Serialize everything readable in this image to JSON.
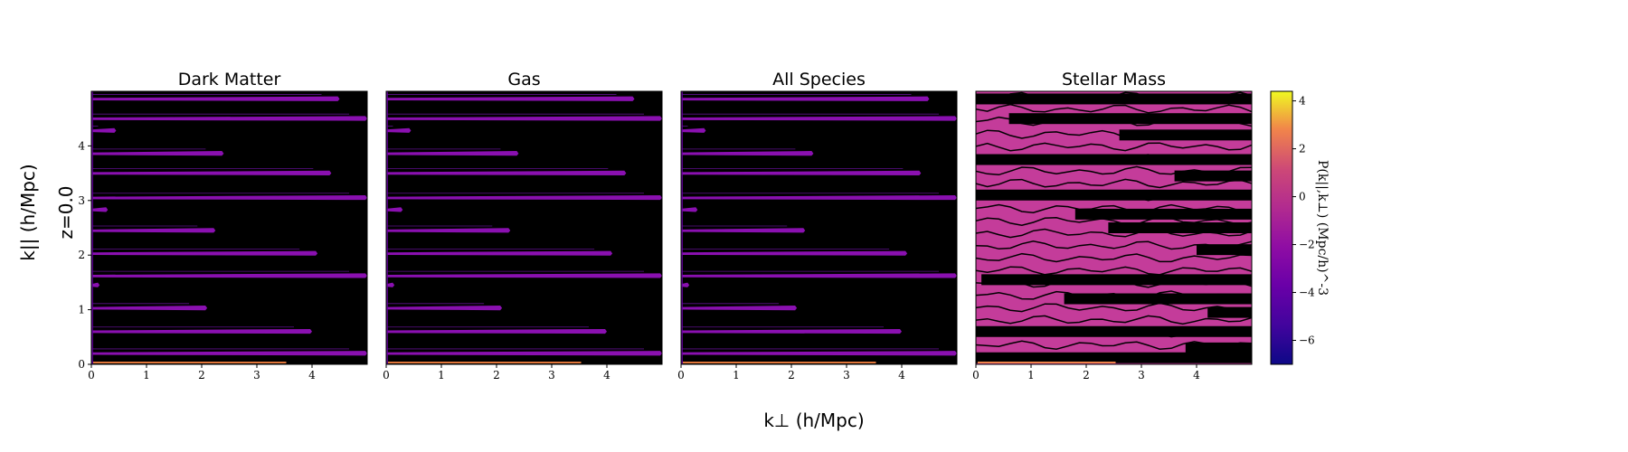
{
  "figure": {
    "xlabel": "k⊥ (h/Mpc)",
    "ylabel": "k|| (h/Mpc)",
    "row_label": "z=0.0"
  },
  "chart_data": {
    "type": "heatmap",
    "colormap": "plasma",
    "xlim": [
      0,
      5
    ],
    "ylim": [
      0,
      5
    ],
    "x_ticks": [
      "0",
      "1",
      "2",
      "3",
      "4"
    ],
    "y_ticks": [
      "0",
      "1",
      "2",
      "3",
      "4"
    ],
    "background_color": "#000000",
    "panels": [
      {
        "title": "Dark Matter",
        "streaks": [
          {
            "y": 4.86,
            "x_end": 4.5
          },
          {
            "y": 4.5,
            "x_end": 5.0
          },
          {
            "y": 4.28,
            "x_end": 0.45
          },
          {
            "y": 3.86,
            "x_end": 2.4
          },
          {
            "y": 3.5,
            "x_end": 4.35
          },
          {
            "y": 3.05,
            "x_end": 5.0
          },
          {
            "y": 2.83,
            "x_end": 0.3
          },
          {
            "y": 2.45,
            "x_end": 2.25
          },
          {
            "y": 2.03,
            "x_end": 4.1
          },
          {
            "y": 1.62,
            "x_end": 5.0
          },
          {
            "y": 1.45,
            "x_end": 0.15
          },
          {
            "y": 1.03,
            "x_end": 2.1
          },
          {
            "y": 0.6,
            "x_end": 4.0
          },
          {
            "y": 0.2,
            "x_end": 5.0
          }
        ]
      },
      {
        "title": "Gas",
        "streaks": [
          {
            "y": 4.86,
            "x_end": 4.5
          },
          {
            "y": 4.5,
            "x_end": 5.0
          },
          {
            "y": 4.28,
            "x_end": 0.45
          },
          {
            "y": 3.86,
            "x_end": 2.4
          },
          {
            "y": 3.5,
            "x_end": 4.35
          },
          {
            "y": 3.05,
            "x_end": 5.0
          },
          {
            "y": 2.83,
            "x_end": 0.3
          },
          {
            "y": 2.45,
            "x_end": 2.25
          },
          {
            "y": 2.03,
            "x_end": 4.1
          },
          {
            "y": 1.62,
            "x_end": 5.0
          },
          {
            "y": 1.45,
            "x_end": 0.15
          },
          {
            "y": 1.03,
            "x_end": 2.1
          },
          {
            "y": 0.6,
            "x_end": 4.0
          },
          {
            "y": 0.2,
            "x_end": 5.0
          }
        ]
      },
      {
        "title": "All Species",
        "streaks": [
          {
            "y": 4.86,
            "x_end": 4.5
          },
          {
            "y": 4.5,
            "x_end": 5.0
          },
          {
            "y": 4.28,
            "x_end": 0.45
          },
          {
            "y": 3.86,
            "x_end": 2.4
          },
          {
            "y": 3.5,
            "x_end": 4.35
          },
          {
            "y": 3.05,
            "x_end": 5.0
          },
          {
            "y": 2.83,
            "x_end": 0.3
          },
          {
            "y": 2.45,
            "x_end": 2.25
          },
          {
            "y": 2.03,
            "x_end": 4.1
          },
          {
            "y": 1.62,
            "x_end": 5.0
          },
          {
            "y": 1.45,
            "x_end": 0.15
          },
          {
            "y": 1.03,
            "x_end": 2.1
          },
          {
            "y": 0.6,
            "x_end": 4.0
          },
          {
            "y": 0.2,
            "x_end": 5.0
          }
        ]
      },
      {
        "title": "Stellar Mass",
        "fill_color": "#c43c9a",
        "dark_bands": [
          {
            "y": 4.86,
            "x_start": 0.0
          },
          {
            "y": 4.5,
            "x_start": 0.6
          },
          {
            "y": 4.2,
            "x_start": 2.6
          },
          {
            "y": 3.75,
            "x_start": 0.0
          },
          {
            "y": 3.45,
            "x_start": 3.6
          },
          {
            "y": 3.1,
            "x_start": 0.0
          },
          {
            "y": 2.75,
            "x_start": 1.8
          },
          {
            "y": 2.5,
            "x_start": 2.4
          },
          {
            "y": 2.1,
            "x_start": 4.0
          },
          {
            "y": 1.55,
            "x_start": 0.1
          },
          {
            "y": 1.2,
            "x_start": 1.6
          },
          {
            "y": 0.95,
            "x_start": 4.2
          },
          {
            "y": 0.6,
            "x_start": 0.0
          },
          {
            "y": 0.3,
            "x_start": 3.8
          },
          {
            "y": 0.12,
            "x_start": 0.0
          }
        ]
      }
    ],
    "colorbar": {
      "label": "P(k||,k⊥) (Mpc/h)^-3",
      "range": [
        -7,
        4.4
      ],
      "ticks": [
        "−6",
        "−4",
        "−2",
        "0",
        "2",
        "4"
      ],
      "tick_values": [
        -6,
        -4,
        -2,
        0,
        2,
        4
      ]
    }
  }
}
